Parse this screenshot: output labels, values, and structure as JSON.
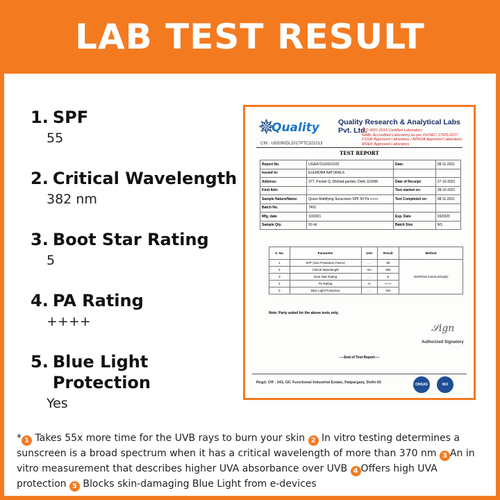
{
  "title": "LAB TEST RESULT",
  "results": [
    {
      "number": "1.",
      "label": "SPF",
      "value": "55"
    },
    {
      "number": "2.",
      "label": "Critical Wavelength",
      "value": "382 nm"
    },
    {
      "number": "3.",
      "label": "Boot Star Rating",
      "value": "5"
    },
    {
      "number": "4.",
      "label": "PA Rating",
      "value": "++++"
    },
    {
      "number": "5.",
      "label": "Blue Light Protection",
      "value": "Yes"
    }
  ],
  "certificate": {
    "logo_text": "Quality",
    "lab_name": "Quality Research & Analytical Labs Pvt. Ltd.",
    "accreditation": [
      "ISO 9001:2015 Certified Laboratory",
      "NABL Accredited Laboratory as per ISO/IEC 17025:2017",
      "FSSAI Approved Laboratory / APEDA Approved Laboratory",
      "MOEF Approved Laboratory"
    ],
    "cin": "CIN : U93090DL2017PTC321013",
    "report_title": "TEST REPORT",
    "info": {
      "report_no_label": "Report No.",
      "report_no": "UGA/F/2110010102",
      "date_label": "Date:",
      "date": "08-11-2021",
      "issued_to_label": "Issued to:",
      "issued_to": "ELEMORA NATURALS",
      "address_label": "Address:",
      "address": "377, Pocket Q, Dilshad garden, Delhi 110095",
      "receipt_label": "Date of Receipt:",
      "receipt": "27-10-2021",
      "kind_attn_label": "Kind Attn:",
      "kind_attn": "-",
      "started_label": "Test started on:",
      "started": "28-10-2021",
      "sample_label": "Sample Nature/Name:",
      "sample": "Qurez Mattifying Sunscreen SPF 50 Pa ++++",
      "completed_label": "Test Completed on:",
      "completed": "08-11-2021",
      "batch_label": "Batch No.",
      "batch": "7401",
      "mfg_label": "Mfg. date",
      "mfg": "10/2021",
      "exp_label": "Exp. Date",
      "exp": "03/2023",
      "qty_label": "Sample Qty.",
      "qty": "50 ml",
      "batch_size_label": "Batch Size",
      "batch_size": "NS"
    },
    "params_headers": [
      "S. No.",
      "Parameter",
      "Unit",
      "Result",
      "Method"
    ],
    "params": [
      {
        "sno": "1",
        "parameter": "SPF (Sun Protection Factor)",
        "unit": "....",
        "result": "55"
      },
      {
        "sno": "2",
        "parameter": "Critical Wavelength",
        "unit": "nm",
        "result": "382"
      },
      {
        "sno": "3",
        "parameter": "Boot Star Rating",
        "unit": "....",
        "result": "5"
      },
      {
        "sno": "4",
        "parameter": "PA Rating",
        "unit": "%",
        "result": "++++"
      },
      {
        "sno": "5",
        "parameter": "Blue Light Protection",
        "unit": "....",
        "result": "Yes"
      }
    ],
    "method": "ISO/FDIS 24443:2011(E)",
    "note": "Note: Party asked for the above tests only.",
    "signatory": "Authorized Signatory",
    "end": "----End of Test Report----",
    "address_footer": "Regd. Off : 341, GF, Functional Industrial Estate, Patparganj, Delhi-92",
    "badge_1": "ONSAS",
    "badge_2": "ISO"
  },
  "footnote": {
    "asterisk": "*",
    "n1": "1",
    "t1": " Takes 55x more time for the UVB rays to burn your skin ",
    "n2": "2",
    "t2": " In vitro testing determines a sunscreen is a broad spectrum when it has a critical wavelength of more than 370 nm ",
    "n3": "3",
    "t3": "An in vitro measurement that describes higher UVA absorbance over UVB ",
    "n4": "4",
    "t4": "Offers high UVA protection ",
    "n5": "5",
    "t5": " Blocks skin-damaging Blue Light from e-devices"
  },
  "colors": {
    "accent": "#f47a20",
    "panel": "#ffffff",
    "text": "#111111"
  }
}
